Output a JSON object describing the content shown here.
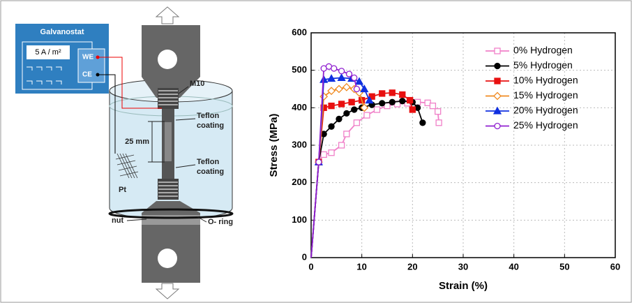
{
  "diagram": {
    "galvanostat": "Galvanostat",
    "current": "5 A / m²",
    "we": "WE",
    "ce": "CE",
    "thread": "M10",
    "coating_top": [
      "Teflon",
      "coating"
    ],
    "gauge": "25 mm",
    "coating_bottom": [
      "Teflon",
      "coating"
    ],
    "electrode": "Pt",
    "nut": "nut",
    "oring": "O- ring"
  },
  "chart_data": {
    "type": "line",
    "xlabel": "Strain (%)",
    "ylabel": "Stress (MPa)",
    "xlim": [
      0,
      60
    ],
    "xticks": [
      0,
      10,
      20,
      30,
      40,
      50,
      60
    ],
    "ylim": [
      0,
      600
    ],
    "yticks": [
      0,
      100,
      200,
      300,
      400,
      500,
      600
    ],
    "grid": true,
    "legend": "upper right",
    "series": [
      {
        "name": "0% Hydrogen",
        "color": "#f080c8",
        "marker": "square-open",
        "x": [
          0,
          1.5,
          2.5,
          4,
          6,
          7,
          9,
          11,
          13,
          15,
          17,
          19,
          21,
          23,
          24,
          25,
          25.2
        ],
        "values": [
          0,
          255,
          275,
          280,
          300,
          330,
          360,
          380,
          395,
          405,
          410,
          412,
          415,
          413,
          405,
          390,
          360
        ]
      },
      {
        "name": "5% Hydrogen",
        "color": "#000000",
        "marker": "circle-filled",
        "x": [
          0,
          1.5,
          2.5,
          4,
          5.5,
          7,
          8.5,
          10,
          12,
          14,
          16,
          18,
          20,
          21,
          22
        ],
        "values": [
          0,
          255,
          330,
          350,
          370,
          385,
          395,
          400,
          408,
          412,
          415,
          418,
          415,
          400,
          360
        ]
      },
      {
        "name": "10% Hydrogen",
        "color": "#e81010",
        "marker": "square-filled",
        "x": [
          0,
          1.5,
          2.5,
          4,
          6,
          8,
          10,
          12,
          14,
          16,
          18,
          19.5,
          20
        ],
        "values": [
          0,
          255,
          400,
          405,
          410,
          415,
          420,
          430,
          438,
          440,
          435,
          420,
          395
        ]
      },
      {
        "name": "15% Hydrogen",
        "color": "#f08a20",
        "marker": "diamond-open",
        "x": [
          0,
          1.5,
          2.5,
          4,
          5.5,
          7,
          8.5,
          9.5,
          10.5
        ],
        "values": [
          0,
          255,
          430,
          445,
          450,
          455,
          450,
          440,
          400
        ]
      },
      {
        "name": "20% Hydrogen",
        "color": "#1030e0",
        "marker": "triangle-filled",
        "x": [
          0,
          1.5,
          2.5,
          4,
          6,
          8,
          9.5,
          10.5,
          11.5
        ],
        "values": [
          0,
          255,
          475,
          478,
          480,
          478,
          470,
          450,
          420
        ]
      },
      {
        "name": "25% Hydrogen",
        "color": "#9020d0",
        "marker": "circle-open",
        "x": [
          0,
          1.5,
          2.5,
          3.5,
          4.5,
          6,
          7.5,
          8.5,
          9
        ],
        "values": [
          0,
          255,
          505,
          510,
          505,
          498,
          490,
          480,
          450
        ]
      }
    ]
  }
}
